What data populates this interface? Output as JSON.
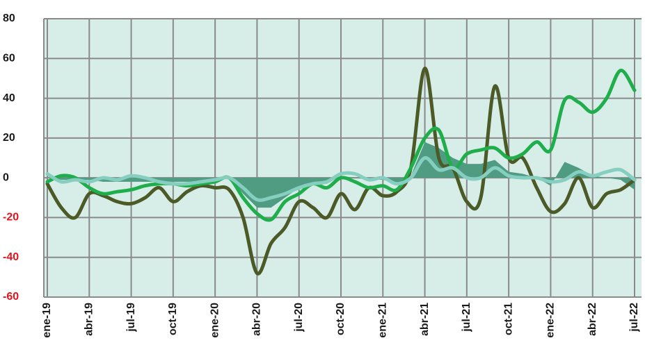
{
  "chart_data": {
    "type": "line",
    "categories": [
      "ene-19",
      null,
      null,
      "abr-19",
      null,
      null,
      "jul-19",
      null,
      null,
      "oct-19",
      null,
      null,
      "ene-20",
      null,
      null,
      "abr-20",
      null,
      null,
      "jul-20",
      null,
      null,
      "oct-20",
      null,
      null,
      "ene-21",
      null,
      null,
      "abr-21",
      null,
      null,
      "jul-21",
      null,
      null,
      "oct-21",
      null,
      null,
      "ene-22",
      null,
      null,
      "abr-22",
      null,
      null,
      "jul-22"
    ],
    "series": [
      {
        "type": "area",
        "color": "#4f9c82",
        "values": [
          0,
          -1,
          -1,
          -1,
          -2,
          -2,
          -2,
          -2,
          -2,
          -2,
          -2,
          -2,
          -1,
          0,
          -8,
          -15,
          -15,
          -10,
          -5,
          -3,
          -3,
          1,
          0,
          -1,
          -1,
          -3,
          1,
          18,
          15,
          10,
          7,
          7,
          9,
          3,
          2,
          0,
          -4,
          8,
          5,
          1,
          0,
          -1,
          -6
        ]
      },
      {
        "type": "line",
        "color": "#4b5a26",
        "values": [
          -3,
          -15,
          -20,
          -8,
          -9,
          -12,
          -13,
          -10,
          -5,
          -12,
          -7,
          -4,
          -5,
          -6,
          -20,
          -48,
          -33,
          -25,
          -12,
          -15,
          -20,
          -8,
          -16,
          -5,
          -9,
          -7,
          5,
          55,
          10,
          5,
          -12,
          -10,
          46,
          10,
          10,
          -5,
          -17,
          -13,
          0,
          -15,
          -8,
          -6,
          -1
        ]
      },
      {
        "type": "line",
        "color": "#1fae4b",
        "values": [
          -2,
          1,
          0,
          -5,
          -8,
          -7,
          -6,
          -4,
          -3,
          -3,
          -4,
          -3,
          -2,
          0,
          -10,
          -18,
          -21,
          -12,
          -8,
          -3,
          -5,
          0,
          -2,
          -5,
          -4,
          -6,
          5,
          20,
          24,
          5,
          12,
          14,
          15,
          10,
          12,
          18,
          14,
          39,
          38,
          33,
          40,
          54,
          44
        ]
      },
      {
        "type": "line",
        "color": "#86cfc0",
        "values": [
          2,
          -2,
          -1,
          -2,
          0,
          -1,
          1,
          0,
          -2,
          -3,
          -3,
          -2,
          -1,
          0,
          -5,
          -11,
          -10,
          -8,
          -5,
          -3,
          -2,
          2,
          2,
          -1,
          0,
          -3,
          0,
          10,
          4,
          5,
          0,
          0,
          5,
          1,
          0,
          0,
          -2,
          -1,
          3,
          1,
          3,
          4,
          -1
        ]
      }
    ],
    "ylim": [
      -60,
      80
    ],
    "yticks": [
      -60,
      -40,
      -20,
      0,
      20,
      40,
      60,
      80
    ],
    "grid": true,
    "plot_background": "#d7eee8",
    "negative_tick_color": "#e3141b"
  }
}
